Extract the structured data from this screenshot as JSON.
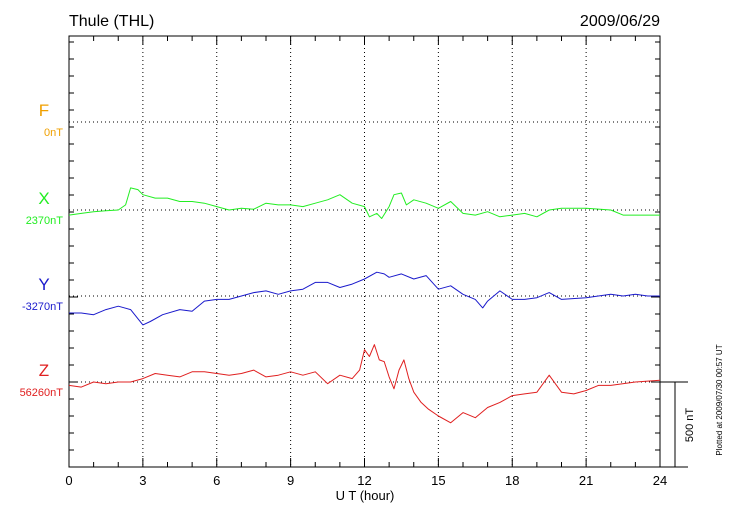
{
  "chart_data": {
    "type": "line",
    "title": "Thule (THL)",
    "date": "2009/06/29",
    "xlabel": "U T (hour)",
    "xlim": [
      0,
      24
    ],
    "x_ticks": [
      0,
      3,
      6,
      9,
      12,
      15,
      18,
      21,
      24
    ],
    "grid": true,
    "scale_bar_label": "500 nT",
    "side_note": "Plotted at 2009/07/30 00:57 UT",
    "series": [
      {
        "name": "F",
        "baseline_label": "0nT",
        "color": "#f0a000",
        "points": []
      },
      {
        "name": "X",
        "baseline_label": "2370nT",
        "color": "#22ee22",
        "points": [
          [
            0,
            -30
          ],
          [
            0.5,
            -20
          ],
          [
            1,
            -10
          ],
          [
            1.5,
            -5
          ],
          [
            2,
            0
          ],
          [
            2.3,
            30
          ],
          [
            2.5,
            130
          ],
          [
            2.8,
            120
          ],
          [
            3,
            90
          ],
          [
            3.5,
            70
          ],
          [
            4,
            70
          ],
          [
            4.5,
            50
          ],
          [
            5,
            50
          ],
          [
            5.5,
            40
          ],
          [
            6,
            20
          ],
          [
            6.5,
            0
          ],
          [
            7,
            10
          ],
          [
            7.5,
            5
          ],
          [
            8,
            40
          ],
          [
            8.5,
            30
          ],
          [
            9,
            30
          ],
          [
            9.5,
            20
          ],
          [
            10,
            40
          ],
          [
            10.5,
            60
          ],
          [
            11,
            90
          ],
          [
            11.5,
            40
          ],
          [
            12,
            20
          ],
          [
            12.2,
            -40
          ],
          [
            12.5,
            -20
          ],
          [
            12.7,
            -50
          ],
          [
            13,
            20
          ],
          [
            13.2,
            90
          ],
          [
            13.5,
            100
          ],
          [
            13.7,
            30
          ],
          [
            14,
            60
          ],
          [
            14.5,
            40
          ],
          [
            15,
            10
          ],
          [
            15.5,
            50
          ],
          [
            16,
            -20
          ],
          [
            16.5,
            -30
          ],
          [
            17,
            -10
          ],
          [
            17.5,
            -40
          ],
          [
            18,
            -30
          ],
          [
            18.5,
            -20
          ],
          [
            19,
            -40
          ],
          [
            19.5,
            0
          ],
          [
            20,
            10
          ],
          [
            21,
            10
          ],
          [
            22,
            0
          ],
          [
            22.5,
            -30
          ],
          [
            23,
            -30
          ],
          [
            24,
            -30
          ]
        ]
      },
      {
        "name": "Y",
        "baseline_label": "-3270nT",
        "color": "#1a1acc",
        "points": [
          [
            0,
            -100
          ],
          [
            0.5,
            -100
          ],
          [
            1,
            -110
          ],
          [
            1.5,
            -80
          ],
          [
            2,
            -60
          ],
          [
            2.5,
            -80
          ],
          [
            3,
            -170
          ],
          [
            3.3,
            -150
          ],
          [
            3.8,
            -110
          ],
          [
            4.5,
            -80
          ],
          [
            5,
            -90
          ],
          [
            5.5,
            -30
          ],
          [
            6,
            -20
          ],
          [
            6.5,
            -20
          ],
          [
            7,
            0
          ],
          [
            7.5,
            20
          ],
          [
            8,
            30
          ],
          [
            8.5,
            10
          ],
          [
            9,
            30
          ],
          [
            9.5,
            40
          ],
          [
            10,
            80
          ],
          [
            10.5,
            80
          ],
          [
            11,
            50
          ],
          [
            11.5,
            70
          ],
          [
            12,
            100
          ],
          [
            12.5,
            140
          ],
          [
            12.8,
            130
          ],
          [
            13,
            110
          ],
          [
            13.5,
            130
          ],
          [
            14,
            100
          ],
          [
            14.5,
            120
          ],
          [
            15,
            40
          ],
          [
            15.5,
            60
          ],
          [
            16,
            10
          ],
          [
            16.5,
            -20
          ],
          [
            16.8,
            -70
          ],
          [
            17,
            -30
          ],
          [
            17.5,
            30
          ],
          [
            18,
            -20
          ],
          [
            18.5,
            -20
          ],
          [
            19,
            -10
          ],
          [
            19.5,
            20
          ],
          [
            20,
            -20
          ],
          [
            21,
            -10
          ],
          [
            21.5,
            0
          ],
          [
            22,
            10
          ],
          [
            22.5,
            0
          ],
          [
            23,
            10
          ],
          [
            23.5,
            0
          ],
          [
            24,
            0
          ]
        ]
      },
      {
        "name": "Z",
        "baseline_label": "56260nT",
        "color": "#e02020",
        "points": [
          [
            0,
            -20
          ],
          [
            0.5,
            -30
          ],
          [
            1,
            0
          ],
          [
            1.5,
            -10
          ],
          [
            2,
            0
          ],
          [
            2.5,
            0
          ],
          [
            3,
            20
          ],
          [
            3.5,
            50
          ],
          [
            4,
            40
          ],
          [
            4.5,
            30
          ],
          [
            5,
            60
          ],
          [
            5.5,
            60
          ],
          [
            6,
            50
          ],
          [
            6.5,
            40
          ],
          [
            7,
            50
          ],
          [
            7.5,
            70
          ],
          [
            8,
            30
          ],
          [
            8.5,
            40
          ],
          [
            9,
            60
          ],
          [
            9.5,
            40
          ],
          [
            10,
            60
          ],
          [
            10.5,
            -10
          ],
          [
            11,
            40
          ],
          [
            11.5,
            20
          ],
          [
            11.8,
            70
          ],
          [
            12,
            190
          ],
          [
            12.2,
            150
          ],
          [
            12.4,
            220
          ],
          [
            12.6,
            130
          ],
          [
            12.8,
            120
          ],
          [
            13,
            30
          ],
          [
            13.2,
            -40
          ],
          [
            13.4,
            70
          ],
          [
            13.6,
            130
          ],
          [
            13.8,
            20
          ],
          [
            14,
            -60
          ],
          [
            14.3,
            -120
          ],
          [
            14.6,
            -160
          ],
          [
            15,
            -200
          ],
          [
            15.5,
            -240
          ],
          [
            16,
            -180
          ],
          [
            16.5,
            -210
          ],
          [
            17,
            -150
          ],
          [
            17.5,
            -120
          ],
          [
            18,
            -80
          ],
          [
            18.5,
            -70
          ],
          [
            19,
            -60
          ],
          [
            19.5,
            40
          ],
          [
            20,
            -60
          ],
          [
            20.5,
            -70
          ],
          [
            21,
            -50
          ],
          [
            21.5,
            -20
          ],
          [
            22,
            -20
          ],
          [
            23,
            0
          ],
          [
            24,
            10
          ]
        ]
      }
    ]
  }
}
